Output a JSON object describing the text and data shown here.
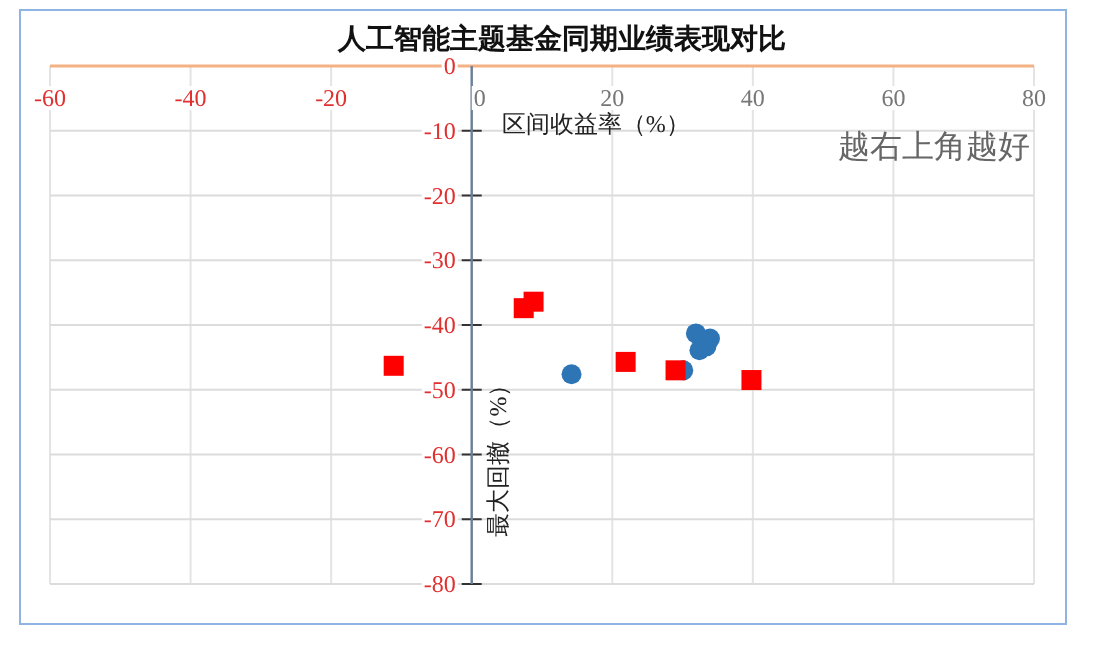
{
  "chart_data": {
    "type": "scatter",
    "title": "人工智能主题基金同期业绩表现对比",
    "xlabel": "区间收益率（%）",
    "ylabel": "最大回撤（%）",
    "annotations": [
      "越右上角越好"
    ],
    "xlim": [
      -60,
      80
    ],
    "ylim": [
      -80,
      0
    ],
    "xticks": [
      -60,
      -40,
      -20,
      0,
      20,
      40,
      60,
      80
    ],
    "yticks": [
      -80,
      -70,
      -60,
      -50,
      -40,
      -30,
      -20,
      -10,
      0
    ],
    "grid": true,
    "marker": "circle",
    "series": [
      {
        "color": "#2e75b6",
        "x": [
          14.2,
          30.1,
          31.9,
          33.9,
          32.4,
          33.4
        ],
        "values": [
          -47.6,
          -47.0,
          -41.3,
          -42.1,
          -43.9,
          -43.3
        ]
      },
      {
        "color": "#ff0000",
        "marker": "square",
        "x": [
          -11.1,
          7.4,
          8.8,
          21.9,
          29.0,
          39.8
        ],
        "values": [
          -46.3,
          -37.4,
          -36.4,
          -45.7,
          -47.0,
          -48.5
        ]
      }
    ]
  }
}
